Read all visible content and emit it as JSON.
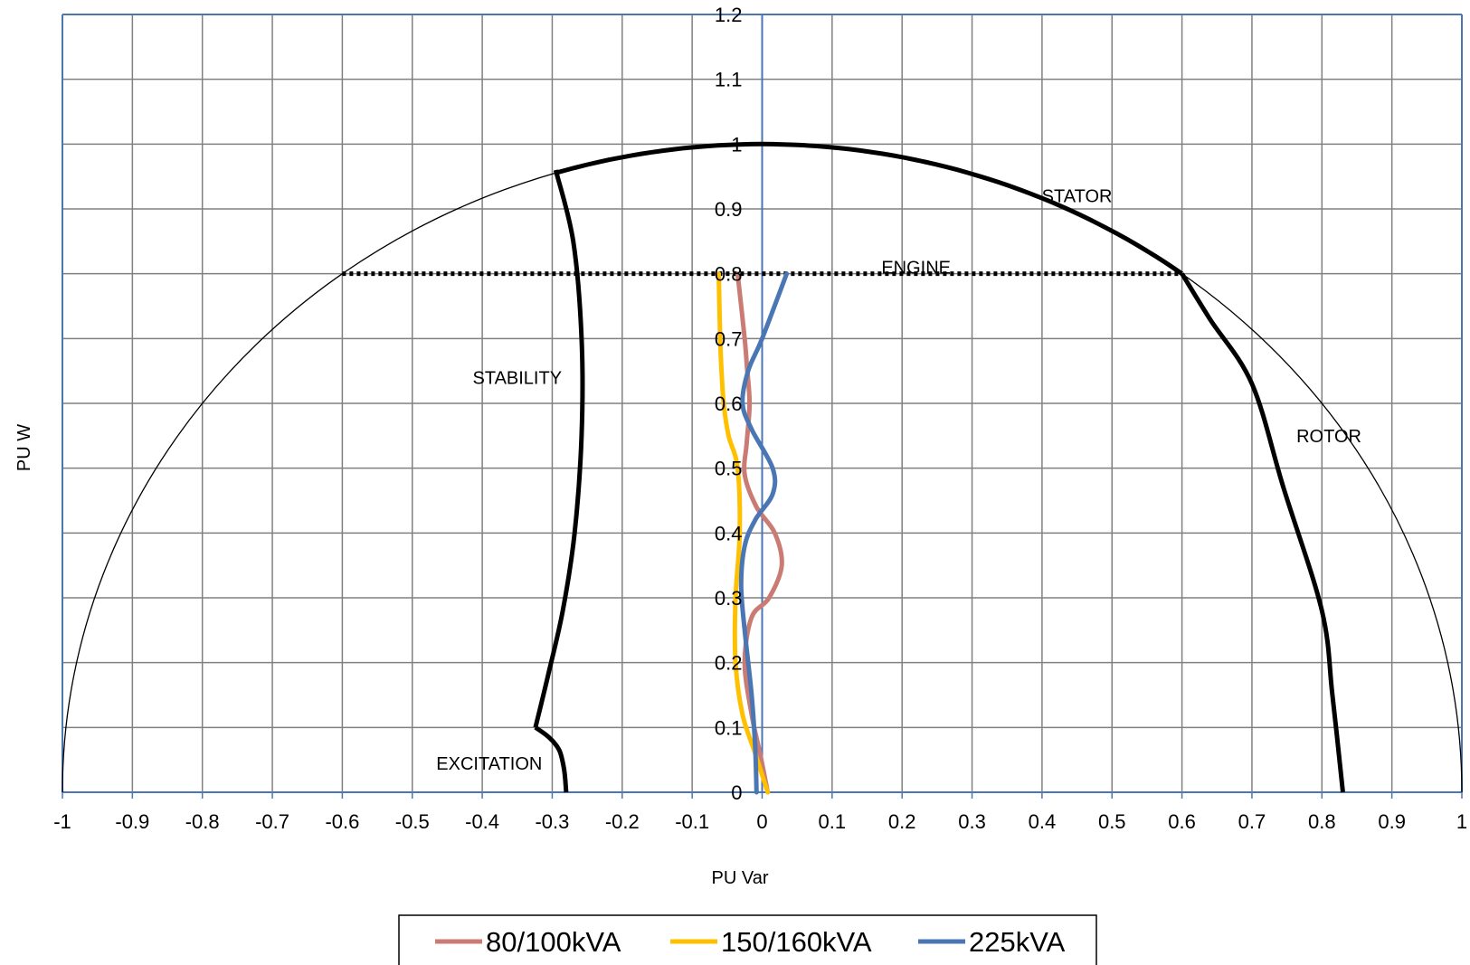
{
  "chart_data": {
    "type": "line",
    "title": "",
    "xlabel": "PU Var",
    "ylabel": "PU W",
    "xlim": [
      -1,
      1
    ],
    "ylim": [
      0,
      1.2
    ],
    "x_ticks": [
      "-1",
      "-0.9",
      "-0.8",
      "-0.7",
      "-0.6",
      "-0.5",
      "-0.4",
      "-0.3",
      "-0.2",
      "-0.1",
      "0",
      "0.1",
      "0.2",
      "0.3",
      "0.4",
      "0.5",
      "0.6",
      "0.7",
      "0.8",
      "0.9",
      "1"
    ],
    "y_ticks": [
      "0",
      "0.1",
      "0.2",
      "0.3",
      "0.4",
      "0.5",
      "0.6",
      "0.7",
      "0.8",
      "0.9",
      "1",
      "1.1",
      "1.2"
    ],
    "grid": true,
    "legend_position": "bottom",
    "colors": {
      "series_80_100": "#c97b74",
      "series_150_160": "#ffc000",
      "series_225": "#4a76b4",
      "limit_lines": "#000000",
      "grid": "#808080",
      "axis": "#4a76b4"
    },
    "annotations": [
      {
        "text": "STATOR",
        "x": 0.45,
        "y": 0.92
      },
      {
        "text": "ENGINE",
        "x": 0.22,
        "y": 0.81
      },
      {
        "text": "STABILITY",
        "x": -0.35,
        "y": 0.64
      },
      {
        "text": "ROTOR",
        "x": 0.81,
        "y": 0.55
      },
      {
        "text": "EXCITATION",
        "x": -0.39,
        "y": 0.045
      }
    ],
    "reference_circle": {
      "radius": 1,
      "from_x": -1,
      "to_x": 1
    },
    "limits": {
      "stator": {
        "radius": 1,
        "from_x": -0.295,
        "to_x": 0.6
      },
      "engine": {
        "y": 0.8,
        "from_x": -0.6,
        "to_x": 0.6
      },
      "stability": {
        "x": [
          -0.295,
          -0.27,
          -0.258,
          -0.258,
          -0.268,
          -0.285,
          -0.306,
          -0.324
        ],
        "y": [
          0.96,
          0.85,
          0.7,
          0.55,
          0.4,
          0.28,
          0.18,
          0.1
        ]
      },
      "excitation": {
        "x": [
          -0.324,
          -0.305,
          -0.29,
          -0.283,
          -0.28
        ],
        "y": [
          0.1,
          0.085,
          0.065,
          0.035,
          0
        ]
      },
      "rotor": {
        "x": [
          0.6,
          0.64,
          0.7,
          0.745,
          0.8,
          0.815,
          0.83
        ],
        "y": [
          0.8,
          0.73,
          0.63,
          0.47,
          0.28,
          0.15,
          0
        ]
      }
    },
    "series": [
      {
        "name": "80/100kVA",
        "x": [
          0.008,
          -0.003,
          -0.015,
          -0.025,
          -0.015,
          0.01,
          0.028,
          0.018,
          -0.008,
          -0.025,
          -0.022,
          -0.018,
          -0.022,
          -0.025,
          -0.035
        ],
        "y": [
          0,
          0.06,
          0.12,
          0.2,
          0.27,
          0.3,
          0.35,
          0.4,
          0.44,
          0.49,
          0.54,
          0.6,
          0.66,
          0.7,
          0.8
        ]
      },
      {
        "name": "150/160kVA",
        "x": [
          0.008,
          -0.01,
          -0.028,
          -0.038,
          -0.038,
          -0.032,
          -0.035,
          -0.048,
          -0.055,
          -0.058,
          -0.06,
          -0.062
        ],
        "y": [
          0,
          0.06,
          0.12,
          0.2,
          0.3,
          0.4,
          0.5,
          0.55,
          0.6,
          0.65,
          0.7,
          0.8
        ]
      },
      {
        "name": "225kVA",
        "x": [
          -0.008,
          -0.01,
          -0.015,
          -0.025,
          -0.03,
          -0.025,
          -0.01,
          0.015,
          0.015,
          -0.015,
          -0.028,
          -0.02,
          0.0,
          0.035
        ],
        "y": [
          0,
          0.07,
          0.15,
          0.25,
          0.32,
          0.38,
          0.42,
          0.46,
          0.5,
          0.56,
          0.6,
          0.65,
          0.7,
          0.8
        ]
      }
    ]
  }
}
